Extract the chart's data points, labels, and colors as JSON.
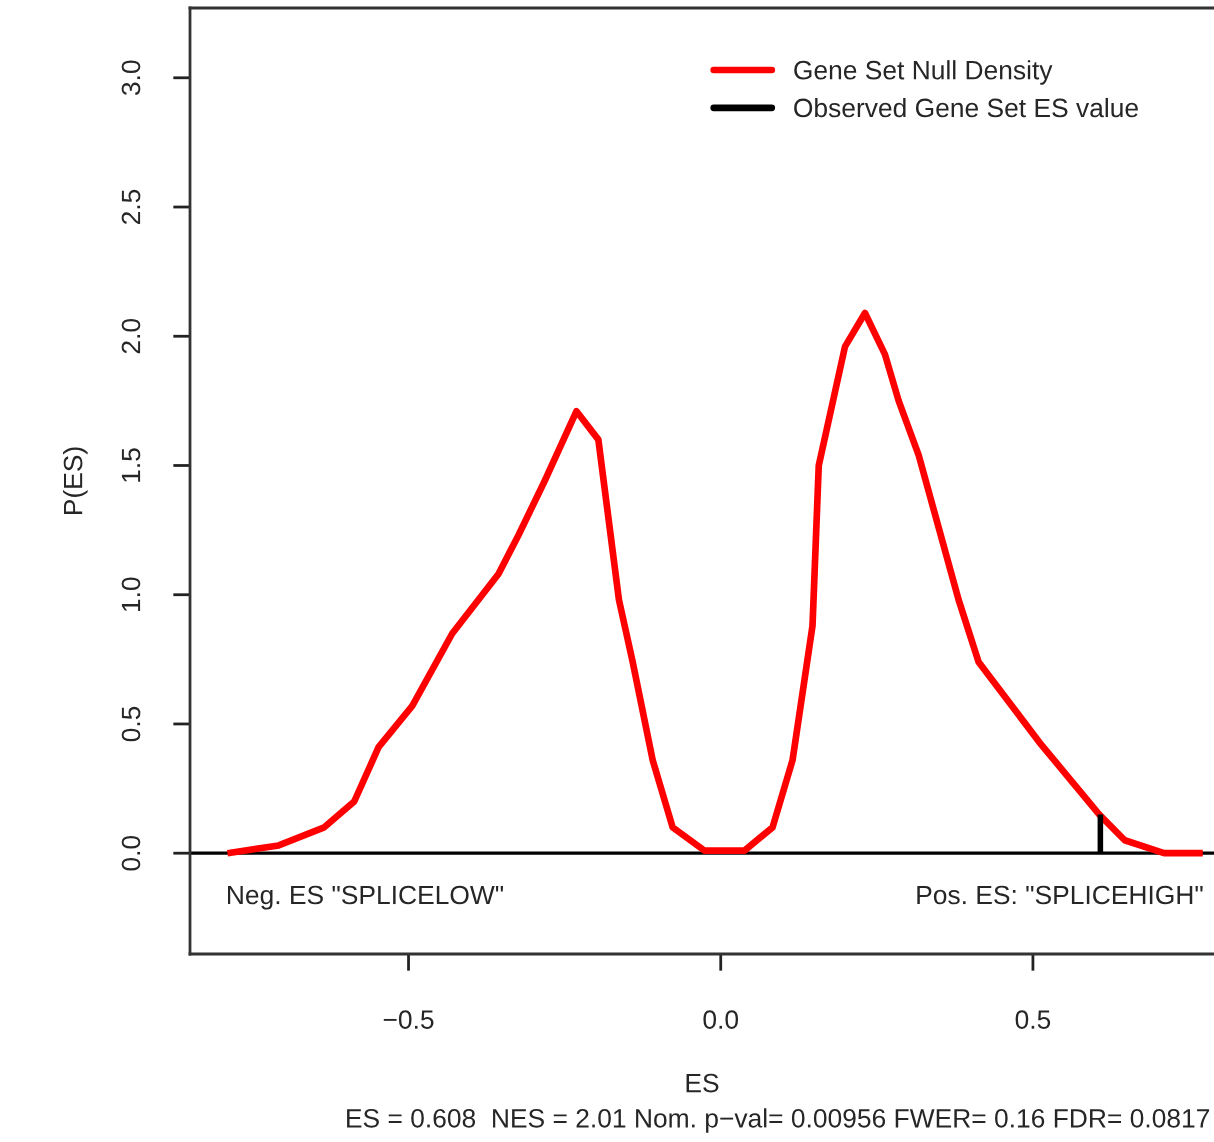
{
  "chart_data": {
    "type": "line",
    "xlabel": "ES",
    "ylabel": "P(ES)",
    "series": [
      {
        "name": "Gene Set Null Density",
        "color": "#ff0000",
        "x": [
          -0.79,
          -0.708,
          -0.635,
          -0.587,
          -0.548,
          -0.494,
          -0.43,
          -0.356,
          -0.324,
          -0.282,
          -0.231,
          -0.196,
          -0.163,
          -0.141,
          -0.109,
          -0.077,
          -0.026,
          0.038,
          0.083,
          0.115,
          0.147,
          0.157,
          0.199,
          0.231,
          0.263,
          0.285,
          0.317,
          0.381,
          0.413,
          0.51,
          0.606,
          0.647,
          0.71,
          0.772
        ],
        "values": [
          0,
          0.03,
          0.1,
          0.2,
          0.41,
          0.57,
          0.85,
          1.08,
          1.23,
          1.44,
          1.71,
          1.6,
          0.98,
          0.74,
          0.36,
          0.1,
          0.01,
          0.01,
          0.1,
          0.36,
          0.88,
          1.5,
          1.96,
          2.09,
          1.93,
          1.75,
          1.54,
          0.98,
          0.74,
          0.43,
          0.15,
          0.05,
          0,
          0
        ]
      },
      {
        "name": "Observed Gene Set ES value",
        "color": "#000000",
        "x": [
          0.608,
          0.608
        ],
        "values": [
          0,
          0.15
        ]
      }
    ],
    "ref_lines": [
      {
        "axis": "y",
        "value": 0,
        "color": "#000000"
      }
    ],
    "xlim": [
      -0.85,
      0.79
    ],
    "ylim": [
      -0.39,
      3.27
    ],
    "xticks": [
      {
        "value": -0.5,
        "label": "−0.5"
      },
      "0.0",
      0.5
    ],
    "yticks": [
      {
        "value": 0,
        "label": "0.0"
      },
      0.5,
      {
        "value": 1,
        "label": "1.0"
      },
      1.5,
      {
        "value": 2,
        "label": "2.0"
      },
      2.5,
      {
        "value": 3,
        "label": "3.0"
      }
    ],
    "annotations": [
      "Neg. ES \"SPLICELOW\"",
      "Pos. ES: \"SPLICEHIGH\"",
      "ES = 0.608  NES = 2.01 Nom. p−val= 0.00956 FWER= 0.16 FDR= 0.0817"
    ],
    "legend": "top right",
    "grid": false,
    "line_style": "solid",
    "marker": "none"
  }
}
